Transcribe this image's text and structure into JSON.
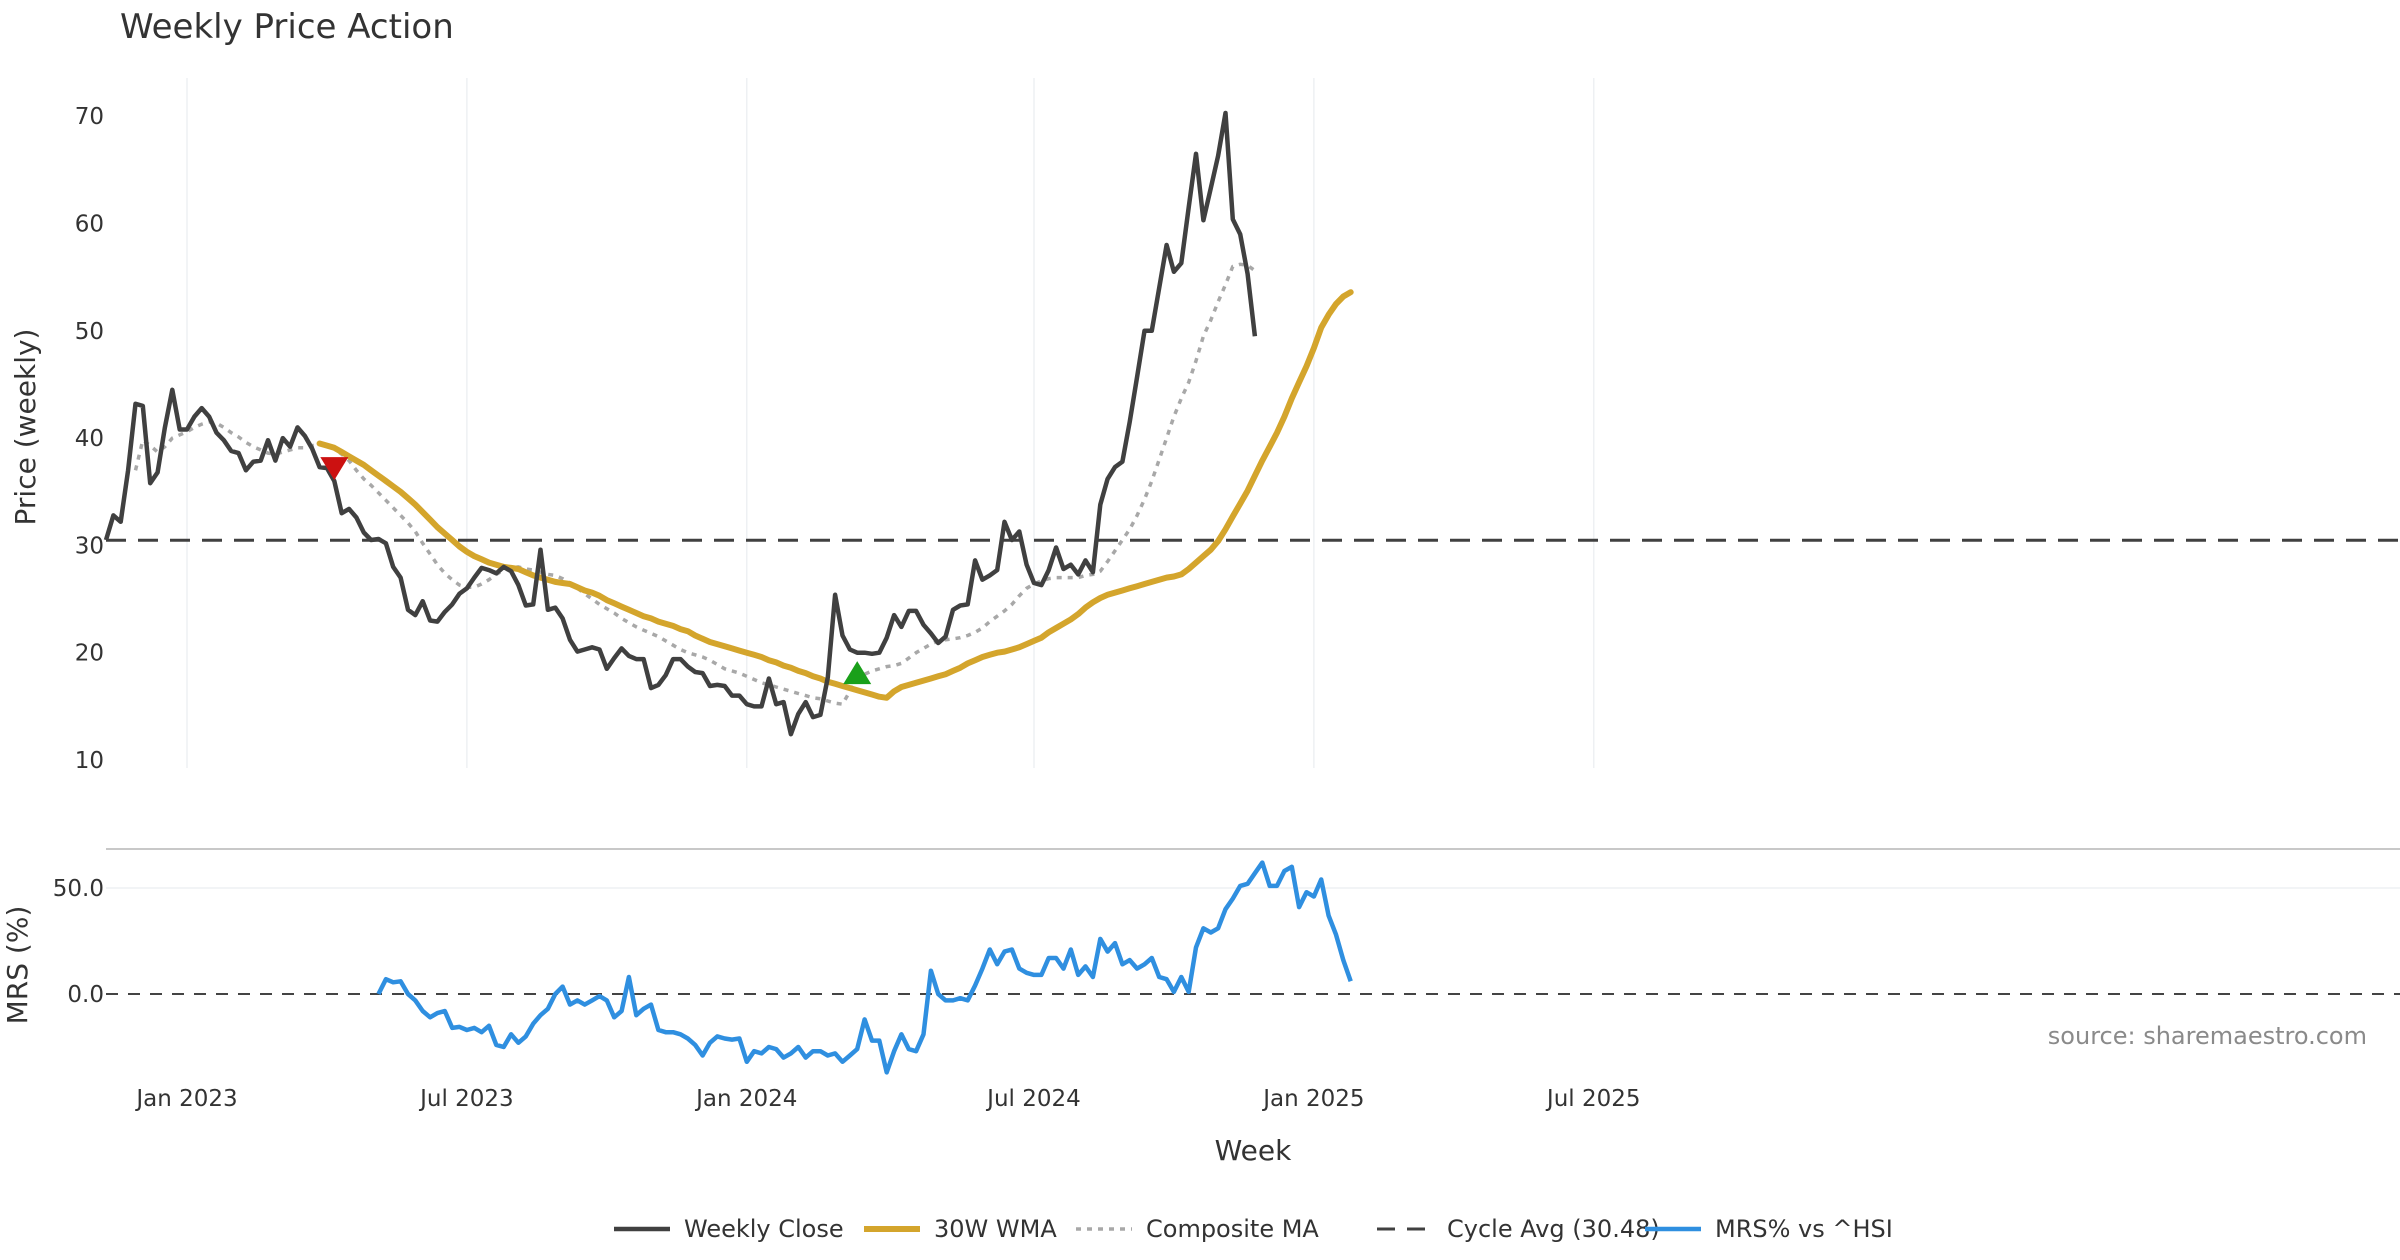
{
  "chart_data": {
    "type": "line",
    "title": "Weekly Price Action",
    "xlabel": "Week",
    "source_note": "source: sharemaestro.com",
    "x_ticks": [
      "Jan 2023",
      "Jul 2023",
      "Jan 2024",
      "Jul 2024",
      "Jan 2025",
      "Jul 2025"
    ],
    "panels": [
      {
        "id": "price",
        "ylabel": "Price (weekly)",
        "ylim": [
          10,
          73
        ],
        "y_ticks": [
          10,
          20,
          30,
          40,
          50,
          60,
          70
        ],
        "grid": true
      },
      {
        "id": "mrs",
        "ylabel": "MRS (%)",
        "ylim": [
          -40,
          70
        ],
        "y_ticks": [
          0.0,
          50.0
        ],
        "y_tick_labels": [
          "0.0",
          "50.0"
        ],
        "grid": true
      }
    ],
    "series": {
      "weekly_close": {
        "name": "Weekly Close",
        "color": "#404040",
        "start_week": 0,
        "values": [
          30.5,
          32.8,
          32.2,
          37.0,
          43.2,
          43.0,
          35.8,
          36.8,
          41.0,
          44.5,
          40.8,
          40.8,
          42.0,
          42.8,
          42.0,
          40.5,
          39.8,
          38.8,
          38.6,
          37.0,
          37.8,
          37.9,
          39.8,
          37.9,
          40.0,
          39.2,
          41.0,
          40.2,
          39.0,
          37.3,
          37.2,
          36.0,
          33.0,
          33.4,
          32.6,
          31.2,
          30.5,
          30.6,
          30.2,
          28.0,
          27.0,
          24.0,
          23.5,
          24.8,
          23.0,
          22.9,
          23.8,
          24.5,
          25.5,
          26.0,
          27.0,
          27.9,
          27.7,
          27.4,
          28.0,
          27.6,
          26.3,
          24.4,
          24.5,
          29.6,
          24.0,
          24.2,
          23.2,
          21.2,
          20.1,
          20.3,
          20.5,
          20.3,
          18.5,
          19.5,
          20.4,
          19.7,
          19.4,
          19.4,
          16.7,
          17.0,
          17.9,
          19.4,
          19.4,
          18.7,
          18.2,
          18.1,
          16.9,
          17.0,
          16.9,
          16.0,
          16.0,
          15.2,
          15.0,
          15.0,
          17.6,
          15.2,
          15.4,
          12.4,
          14.3,
          15.4,
          14.0,
          14.2,
          17.7,
          25.4,
          21.6,
          20.3,
          20.0,
          20.0,
          19.9,
          20.0,
          21.4,
          23.5,
          22.4,
          23.9,
          23.9,
          22.6,
          21.8,
          20.9,
          21.5,
          24.0,
          24.4,
          24.5,
          28.6,
          26.8,
          27.2,
          27.7,
          32.2,
          30.5,
          31.3,
          28.2,
          26.5,
          26.3,
          27.7,
          29.8,
          27.8,
          28.2,
          27.3,
          28.6,
          27.5,
          33.8,
          36.2,
          37.3,
          37.8,
          41.5,
          45.7,
          50.0,
          50.0,
          54.0,
          58.0,
          55.5,
          56.3,
          61.5,
          66.5,
          60.3,
          63.3,
          66.3,
          70.3,
          60.4,
          59.0,
          55.3,
          49.5
        ]
      },
      "wma_30": {
        "name": "30W WMA",
        "color": "#d4a52c",
        "start_week": 29,
        "values": [
          39.5,
          39.3,
          39.1,
          38.7,
          38.3,
          37.9,
          37.5,
          37.0,
          36.5,
          36.0,
          35.5,
          35.0,
          34.4,
          33.8,
          33.1,
          32.4,
          31.7,
          31.1,
          30.5,
          29.9,
          29.4,
          29.0,
          28.7,
          28.4,
          28.2,
          28.0,
          27.9,
          27.8,
          27.5,
          27.2,
          27.0,
          26.8,
          26.6,
          26.5,
          26.4,
          26.1,
          25.8,
          25.6,
          25.3,
          24.9,
          24.6,
          24.3,
          24.0,
          23.7,
          23.4,
          23.2,
          22.9,
          22.7,
          22.5,
          22.2,
          22.0,
          21.6,
          21.3,
          21.0,
          20.8,
          20.6,
          20.4,
          20.2,
          20.0,
          19.8,
          19.6,
          19.3,
          19.1,
          18.8,
          18.6,
          18.3,
          18.1,
          17.8,
          17.6,
          17.3,
          17.1,
          16.9,
          16.7,
          16.5,
          16.3,
          16.1,
          15.9,
          15.8,
          16.4,
          16.8,
          17.0,
          17.2,
          17.4,
          17.6,
          17.8,
          18.0,
          18.3,
          18.6,
          19.0,
          19.3,
          19.6,
          19.8,
          20.0,
          20.1,
          20.3,
          20.5,
          20.8,
          21.1,
          21.4,
          21.9,
          22.3,
          22.7,
          23.1,
          23.6,
          24.2,
          24.7,
          25.1,
          25.4,
          25.6,
          25.8,
          26.0,
          26.2,
          26.4,
          26.6,
          26.8,
          27.0,
          27.1,
          27.3,
          27.8,
          28.4,
          29.0,
          29.6,
          30.4,
          31.5,
          32.7,
          33.9,
          35.1,
          36.5,
          37.9,
          39.2,
          40.5,
          42.0,
          43.7,
          45.2,
          46.7,
          48.4,
          50.3,
          51.5,
          52.5,
          53.2,
          53.6
        ]
      },
      "composite_ma": {
        "name": "Composite MA",
        "color": "#a8a8a8",
        "start_week": 4,
        "values": [
          37.0,
          39.8,
          39.3,
          38.7,
          39.2,
          40.0,
          40.3,
          40.6,
          41.0,
          41.3,
          41.5,
          41.4,
          41.0,
          40.5,
          40.1,
          39.6,
          39.2,
          38.9,
          38.6,
          38.5,
          38.7,
          38.9,
          39.1,
          39.1,
          39.3,
          39.4,
          39.4,
          39.0,
          38.5,
          37.9,
          37.0,
          36.2,
          35.6,
          34.9,
          34.2,
          33.5,
          32.8,
          32.1,
          31.3,
          30.2,
          29.2,
          28.2,
          27.4,
          26.8,
          26.3,
          26.1,
          26.1,
          26.4,
          26.8,
          27.3,
          27.7,
          27.9,
          28.0,
          27.8,
          27.7,
          27.5,
          27.3,
          27.2,
          26.9,
          26.5,
          26.0,
          25.5,
          25.0,
          24.5,
          24.1,
          23.7,
          23.2,
          22.8,
          22.4,
          22.1,
          21.8,
          21.5,
          21.1,
          20.7,
          20.3,
          20.0,
          19.8,
          19.6,
          19.3,
          18.9,
          18.5,
          18.3,
          18.1,
          17.8,
          17.5,
          17.2,
          17.0,
          16.8,
          16.6,
          16.4,
          16.2,
          16.0,
          15.8,
          15.7,
          15.5,
          15.3,
          15.2,
          16.4,
          17.5,
          18.0,
          18.3,
          18.5,
          18.7,
          18.8,
          19.0,
          19.5,
          20.0,
          20.4,
          20.8,
          21.1,
          21.2,
          21.3,
          21.4,
          21.6,
          21.9,
          22.3,
          22.9,
          23.4,
          23.9,
          24.5,
          25.3,
          26.0,
          26.4,
          26.7,
          26.9,
          27.0,
          27.0,
          27.0,
          27.0,
          27.2,
          27.3,
          27.6,
          28.5,
          29.5,
          30.5,
          31.5,
          32.8,
          34.3,
          36.0,
          38.0,
          40.0,
          42.0,
          43.7,
          45.2,
          47.2,
          49.5,
          51.0,
          52.7,
          54.3,
          56.0,
          56.2,
          56.1,
          55.6
        ]
      },
      "cycle_avg": {
        "name": "Cycle Avg (30.48)",
        "color": "#404040",
        "value": 30.48
      },
      "mrs": {
        "name": "MRS% vs ^HSI",
        "color": "#2f8fe0",
        "start_week": 37,
        "values": [
          0.0,
          7.0,
          5.5,
          6.0,
          0.0,
          -3.0,
          -8.0,
          -11.0,
          -9.0,
          -8.0,
          -16.0,
          -15.5,
          -17.0,
          -16.0,
          -18.0,
          -15.0,
          -24.0,
          -25.0,
          -19.0,
          -23.0,
          -20.0,
          -14.0,
          -10.0,
          -7.0,
          0.0,
          3.5,
          -5.0,
          -3.0,
          -5.0,
          -3.0,
          -1.0,
          -3.0,
          -11.0,
          -8.0,
          8.0,
          -10.0,
          -7.0,
          -5.0,
          -17.0,
          -18.0,
          -18.0,
          -19.0,
          -21.0,
          -24.0,
          -29.0,
          -23.0,
          -20.0,
          -21.0,
          -21.5,
          -21.0,
          -32.0,
          -27.0,
          -28.0,
          -25.0,
          -26.0,
          -30.0,
          -28.0,
          -25.0,
          -30.0,
          -27.0,
          -27.0,
          -29.0,
          -28.0,
          -32.0,
          -29.0,
          -26.0,
          -12.0,
          -22.0,
          -22.0,
          -37.0,
          -27.0,
          -19.0,
          -26.0,
          -27.0,
          -19.0,
          11.0,
          0.0,
          -3.0,
          -3.0,
          -2.0,
          -3.0,
          4.0,
          12.0,
          21.0,
          14.0,
          20.0,
          21.0,
          12.0,
          10.0,
          9.0,
          9.0,
          17.0,
          17.0,
          12.0,
          21.0,
          9.0,
          13.0,
          8.0,
          26.0,
          20.0,
          24.0,
          14.0,
          16.0,
          12.0,
          14.0,
          17.0,
          8.0,
          7.0,
          1.0,
          8.0,
          1.0,
          22.0,
          31.0,
          29.0,
          31.0,
          40.0,
          45.0,
          51.0,
          52.0,
          57.0,
          62.0,
          51.0,
          51.0,
          58.0,
          60.0,
          41.0,
          48.0,
          46.0,
          54.0,
          37.0,
          28.0,
          16.0,
          6.0
        ]
      }
    },
    "markers": [
      {
        "type": "sell",
        "shape": "triangle-down",
        "color": "#cc1111",
        "week": 31,
        "value": 37.2
      },
      {
        "type": "buy",
        "shape": "triangle-up",
        "color": "#1aa01a",
        "week": 102,
        "value": 18.1
      }
    ],
    "legend": {
      "placement": "bottom-center",
      "items": [
        {
          "key": "weekly_close",
          "label": "Weekly Close",
          "style": "solid"
        },
        {
          "key": "wma_30",
          "label": "30W WMA",
          "style": "solid"
        },
        {
          "key": "composite_ma",
          "label": "Composite MA",
          "style": "dotted"
        },
        {
          "key": "cycle_avg",
          "label": "Cycle Avg (30.48)",
          "style": "dashed"
        },
        {
          "key": "mrs",
          "label": "MRS% vs ^HSI",
          "style": "solid"
        }
      ]
    }
  }
}
